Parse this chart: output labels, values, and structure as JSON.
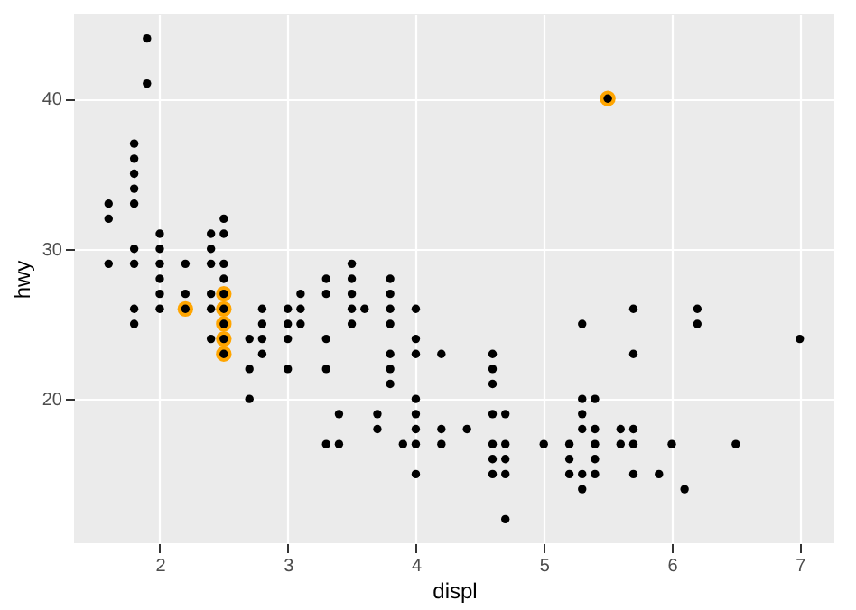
{
  "chart_data": {
    "type": "scatter",
    "xlabel": "displ",
    "ylabel": "hwy",
    "xlim": [
      1.33,
      7.27
    ],
    "ylim": [
      10.4,
      45.6
    ],
    "xticks": [
      2,
      3,
      4,
      5,
      6,
      7
    ],
    "yticks": [
      20,
      30,
      40
    ],
    "grid": true,
    "series": [
      {
        "color": "#ffa500",
        "x": [
          2.2,
          2.5,
          2.5,
          2.5,
          2.5,
          2.5,
          5.5
        ],
        "values": [
          26,
          27,
          26,
          25,
          24,
          23,
          40
        ]
      },
      {
        "color": "#000000",
        "x": [
          1.6,
          1.6,
          1.6,
          1.8,
          1.8,
          1.8,
          1.8,
          1.8,
          1.8,
          1.8,
          1.8,
          1.8,
          1.9,
          1.9,
          2.0,
          2.0,
          2.0,
          2.0,
          2.0,
          2.0,
          2.2,
          2.2,
          2.2,
          2.4,
          2.4,
          2.4,
          2.4,
          2.4,
          2.4,
          2.5,
          2.5,
          2.5,
          2.5,
          2.5,
          2.5,
          2.5,
          2.5,
          2.5,
          2.7,
          2.7,
          2.7,
          2.8,
          2.8,
          2.8,
          2.8,
          3.0,
          3.0,
          3.0,
          3.0,
          3.1,
          3.1,
          3.1,
          3.3,
          3.3,
          3.3,
          3.3,
          3.3,
          3.4,
          3.4,
          3.5,
          3.5,
          3.5,
          3.5,
          3.5,
          3.6,
          3.7,
          3.7,
          3.8,
          3.8,
          3.8,
          3.8,
          3.8,
          3.8,
          3.8,
          3.9,
          4.0,
          4.0,
          4.0,
          4.0,
          4.0,
          4.0,
          4.0,
          4.0,
          4.2,
          4.2,
          4.2,
          4.4,
          4.6,
          4.6,
          4.6,
          4.6,
          4.6,
          4.6,
          4.6,
          4.7,
          4.7,
          4.7,
          4.7,
          4.7,
          5.0,
          5.2,
          5.2,
          5.2,
          5.3,
          5.3,
          5.3,
          5.3,
          5.3,
          5.3,
          5.4,
          5.4,
          5.4,
          5.4,
          5.4,
          5.5,
          5.6,
          5.6,
          5.7,
          5.7,
          5.7,
          5.7,
          5.7,
          5.9,
          6.0,
          6.1,
          6.2,
          6.2,
          6.5,
          7.0
        ],
        "values": [
          33,
          32,
          29,
          37,
          36,
          35,
          34,
          33,
          30,
          29,
          26,
          25,
          44,
          41,
          31,
          30,
          29,
          28,
          27,
          26,
          29,
          27,
          26,
          31,
          30,
          29,
          27,
          26,
          24,
          32,
          31,
          29,
          28,
          27,
          26,
          25,
          24,
          23,
          24,
          22,
          20,
          26,
          25,
          24,
          23,
          26,
          25,
          24,
          22,
          27,
          26,
          25,
          28,
          27,
          24,
          22,
          17,
          19,
          17,
          29,
          28,
          27,
          26,
          25,
          26,
          19,
          18,
          28,
          27,
          26,
          25,
          23,
          22,
          21,
          17,
          26,
          24,
          23,
          20,
          19,
          18,
          17,
          15,
          23,
          18,
          17,
          18,
          23,
          22,
          21,
          19,
          17,
          16,
          15,
          19,
          17,
          16,
          15,
          12,
          17,
          17,
          16,
          15,
          25,
          20,
          19,
          18,
          15,
          14,
          20,
          18,
          17,
          16,
          15,
          40,
          18,
          17,
          26,
          23,
          18,
          17,
          15,
          15,
          17,
          14,
          26,
          25,
          17,
          24
        ]
      }
    ]
  }
}
